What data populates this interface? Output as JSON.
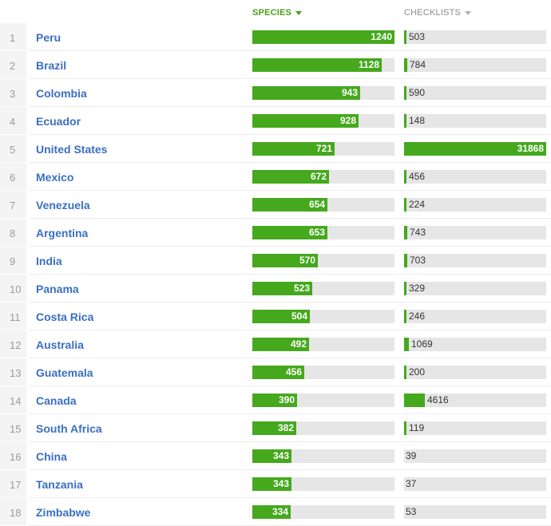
{
  "header": {
    "species_label": "SPECIES",
    "checklists_label": "CHECKLISTS"
  },
  "scale": {
    "species_max": 1240,
    "checklists_max": 31868
  },
  "colors": {
    "bar": "#45a81d",
    "track": "#e6e6e6",
    "link": "#3a6fc1",
    "sort_active": "#4a9e1a",
    "sort_inactive": "#8a8a8a"
  },
  "rows": [
    {
      "rank": "1",
      "country": "Peru",
      "species": 1240,
      "checklists": 503
    },
    {
      "rank": "2",
      "country": "Brazil",
      "species": 1128,
      "checklists": 784
    },
    {
      "rank": "3",
      "country": "Colombia",
      "species": 943,
      "checklists": 590
    },
    {
      "rank": "4",
      "country": "Ecuador",
      "species": 928,
      "checklists": 148
    },
    {
      "rank": "5",
      "country": "United States",
      "species": 721,
      "checklists": 31868
    },
    {
      "rank": "6",
      "country": "Mexico",
      "species": 672,
      "checklists": 456
    },
    {
      "rank": "7",
      "country": "Venezuela",
      "species": 654,
      "checklists": 224
    },
    {
      "rank": "8",
      "country": "Argentina",
      "species": 653,
      "checklists": 743
    },
    {
      "rank": "9",
      "country": "India",
      "species": 570,
      "checklists": 703
    },
    {
      "rank": "10",
      "country": "Panama",
      "species": 523,
      "checklists": 329
    },
    {
      "rank": "11",
      "country": "Costa Rica",
      "species": 504,
      "checklists": 246
    },
    {
      "rank": "12",
      "country": "Australia",
      "species": 492,
      "checklists": 1069
    },
    {
      "rank": "13",
      "country": "Guatemala",
      "species": 456,
      "checklists": 200
    },
    {
      "rank": "14",
      "country": "Canada",
      "species": 390,
      "checklists": 4616
    },
    {
      "rank": "15",
      "country": "South Africa",
      "species": 382,
      "checklists": 119
    },
    {
      "rank": "16",
      "country": "China",
      "species": 343,
      "checklists": 39
    },
    {
      "rank": "17",
      "country": "Tanzania",
      "species": 343,
      "checklists": 37
    },
    {
      "rank": "18",
      "country": "Zimbabwe",
      "species": 334,
      "checklists": 53
    }
  ]
}
